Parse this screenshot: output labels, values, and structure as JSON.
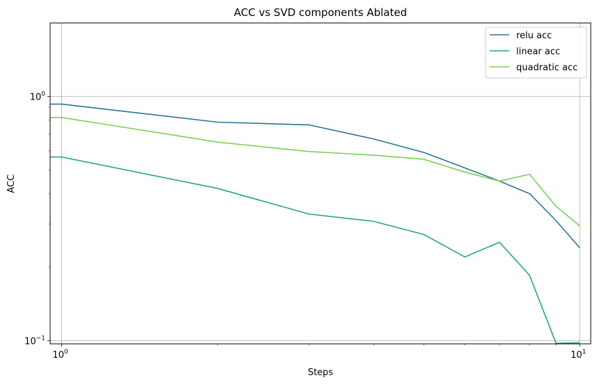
{
  "chart_data": {
    "type": "line",
    "title": "ACC vs SVD components Ablated",
    "xlabel": "Steps",
    "ylabel": "ACC",
    "xscale": "log",
    "yscale": "log",
    "xlim": [
      0.95,
      10.5
    ],
    "ylim": [
      0.097,
      2.0
    ],
    "grid": "major",
    "legend_position": "top-right",
    "x": [
      0.92,
      1,
      2,
      3,
      4,
      5,
      6,
      7,
      8,
      9,
      10
    ],
    "x_ticks": [
      {
        "value": 1,
        "base": "10",
        "exp": "0"
      },
      {
        "value": 10,
        "base": "10",
        "exp": "1"
      }
    ],
    "y_ticks": [
      {
        "value": 0.1,
        "base": "10",
        "exp": "−1"
      },
      {
        "value": 1,
        "base": "10",
        "exp": "0"
      }
    ],
    "series": [
      {
        "name": "relu acc",
        "color": "#26788c",
        "values": [
          0.93,
          0.93,
          0.785,
          0.765,
          0.67,
          0.59,
          0.51,
          0.45,
          0.4,
          0.31,
          0.24
        ]
      },
      {
        "name": "linear acc",
        "color": "#22a77e",
        "values": [
          0.565,
          0.565,
          0.42,
          0.33,
          0.308,
          0.272,
          0.22,
          0.253,
          0.185,
          0.0975,
          0.098
        ]
      },
      {
        "name": "quadratic acc",
        "color": "#78d153",
        "values": [
          0.82,
          0.82,
          0.65,
          0.595,
          0.575,
          0.553,
          0.49,
          0.45,
          0.48,
          0.355,
          0.295
        ]
      }
    ]
  }
}
